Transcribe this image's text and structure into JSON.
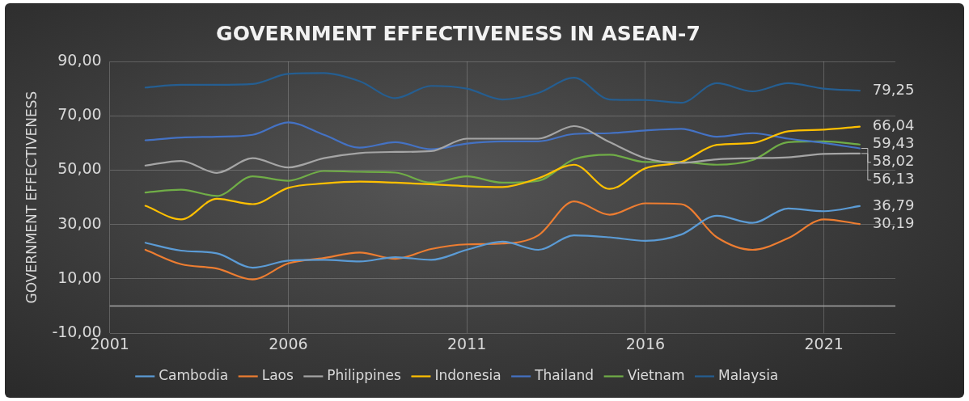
{
  "chart_data": {
    "type": "line",
    "title": "GOVERNMENT EFFECTIVENESS IN ASEAN-7",
    "ylabel": "GOVERNMENT EFFECTIVENESS",
    "x": [
      2002,
      2003,
      2004,
      2005,
      2006,
      2007,
      2008,
      2009,
      2010,
      2011,
      2012,
      2013,
      2014,
      2015,
      2016,
      2017,
      2018,
      2019,
      2020,
      2021,
      2022
    ],
    "xlim": [
      2001,
      2023
    ],
    "xticks": [
      2001,
      2006,
      2011,
      2016,
      2021
    ],
    "ylim": [
      -10,
      90
    ],
    "yticks": [
      {
        "value": -10,
        "label": "-10,00"
      },
      {
        "value": 10,
        "label": "10,00"
      },
      {
        "value": 30,
        "label": "30,00"
      },
      {
        "value": 50,
        "label": "50,00"
      },
      {
        "value": 70,
        "label": "70,00"
      },
      {
        "value": 90,
        "label": "90,00"
      }
    ],
    "series": [
      {
        "name": "Cambodia",
        "color": "#5b9bd5",
        "values": [
          23.3,
          20.4,
          19.4,
          14.1,
          16.7,
          17,
          16.4,
          18,
          17,
          20.7,
          23.7,
          20.7,
          26,
          25.3,
          24,
          26.3,
          33.2,
          30.6,
          35.9,
          34.9,
          36.79
        ],
        "value_labels": [
          null,
          null,
          null,
          null,
          null,
          null,
          null,
          null,
          null,
          null,
          null,
          null,
          null,
          null,
          null,
          null,
          null,
          null,
          null,
          null,
          "36,79"
        ]
      },
      {
        "name": "Laos",
        "color": "#ed7d31",
        "values": [
          20.7,
          15.4,
          13.8,
          9.8,
          15.7,
          17.7,
          19.7,
          17.4,
          21,
          22.7,
          23,
          26,
          38.5,
          33.6,
          37.8,
          37.5,
          25.3,
          20.7,
          25,
          31.9,
          30.19
        ],
        "value_labels": [
          null,
          null,
          null,
          null,
          null,
          null,
          null,
          null,
          null,
          null,
          null,
          null,
          null,
          null,
          null,
          null,
          null,
          null,
          null,
          null,
          "30,19"
        ]
      },
      {
        "name": "Philippines",
        "color": "#a5a5a5",
        "values": [
          51.7,
          53.4,
          49,
          54.4,
          51,
          54.4,
          56.3,
          56.7,
          57,
          61.6,
          61.6,
          61.6,
          66.2,
          60.3,
          54.4,
          52.7,
          54,
          54.4,
          54.7,
          56,
          56.13
        ],
        "value_labels": [
          null,
          null,
          null,
          null,
          null,
          null,
          null,
          null,
          null,
          null,
          null,
          null,
          null,
          null,
          null,
          null,
          null,
          null,
          null,
          null,
          "56,13"
        ]
      },
      {
        "name": "Indonesia",
        "color": "#ffc000",
        "values": [
          36.9,
          31.9,
          39.5,
          37.5,
          43.5,
          45.1,
          45.8,
          45.4,
          44.8,
          44.1,
          43.8,
          47,
          52,
          43.1,
          50.7,
          53,
          59.3,
          60,
          64.3,
          64.9,
          66.04
        ],
        "value_labels": [
          null,
          null,
          null,
          null,
          null,
          null,
          null,
          null,
          null,
          null,
          null,
          null,
          null,
          null,
          null,
          null,
          null,
          null,
          null,
          null,
          "66,04"
        ]
      },
      {
        "name": "Thailand",
        "color": "#4472c4",
        "values": [
          61,
          62,
          62.3,
          63,
          67.6,
          63,
          58.3,
          60.3,
          57.7,
          59.8,
          60.6,
          60.6,
          63.3,
          63.6,
          64.6,
          65.2,
          62.3,
          63.6,
          61.6,
          60,
          58.02
        ],
        "value_labels": [
          null,
          null,
          null,
          null,
          null,
          null,
          null,
          null,
          null,
          null,
          null,
          null,
          null,
          null,
          null,
          null,
          null,
          null,
          null,
          null,
          "58,02"
        ]
      },
      {
        "name": "Vietnam",
        "color": "#70ad47",
        "values": [
          41.8,
          42.8,
          40.5,
          47.7,
          46.1,
          49.7,
          49.4,
          49.1,
          45.4,
          47.7,
          45.4,
          46.1,
          54,
          55.7,
          53,
          53,
          52,
          53.7,
          60.3,
          60.6,
          59.43
        ],
        "value_labels": [
          null,
          null,
          null,
          null,
          null,
          null,
          null,
          null,
          null,
          null,
          null,
          null,
          null,
          null,
          null,
          null,
          null,
          null,
          null,
          null,
          "59,43"
        ]
      },
      {
        "name": "Malaysia",
        "color": "#255e91",
        "values": [
          80.4,
          81.4,
          81.4,
          81.7,
          85.4,
          85.7,
          82.7,
          76.5,
          81,
          80,
          76,
          78.4,
          84,
          76,
          75.8,
          74.8,
          82,
          79,
          82,
          80,
          79.25
        ],
        "value_labels": [
          null,
          null,
          null,
          null,
          null,
          null,
          null,
          null,
          null,
          null,
          null,
          null,
          null,
          null,
          null,
          null,
          null,
          null,
          null,
          null,
          "79,25"
        ]
      }
    ],
    "ref_lines": [
      {
        "axis": "y",
        "value": 0,
        "color": "#a6a6a6"
      }
    ],
    "grid": true,
    "legend": "bottom",
    "marker": "none",
    "line_style": "solid"
  }
}
